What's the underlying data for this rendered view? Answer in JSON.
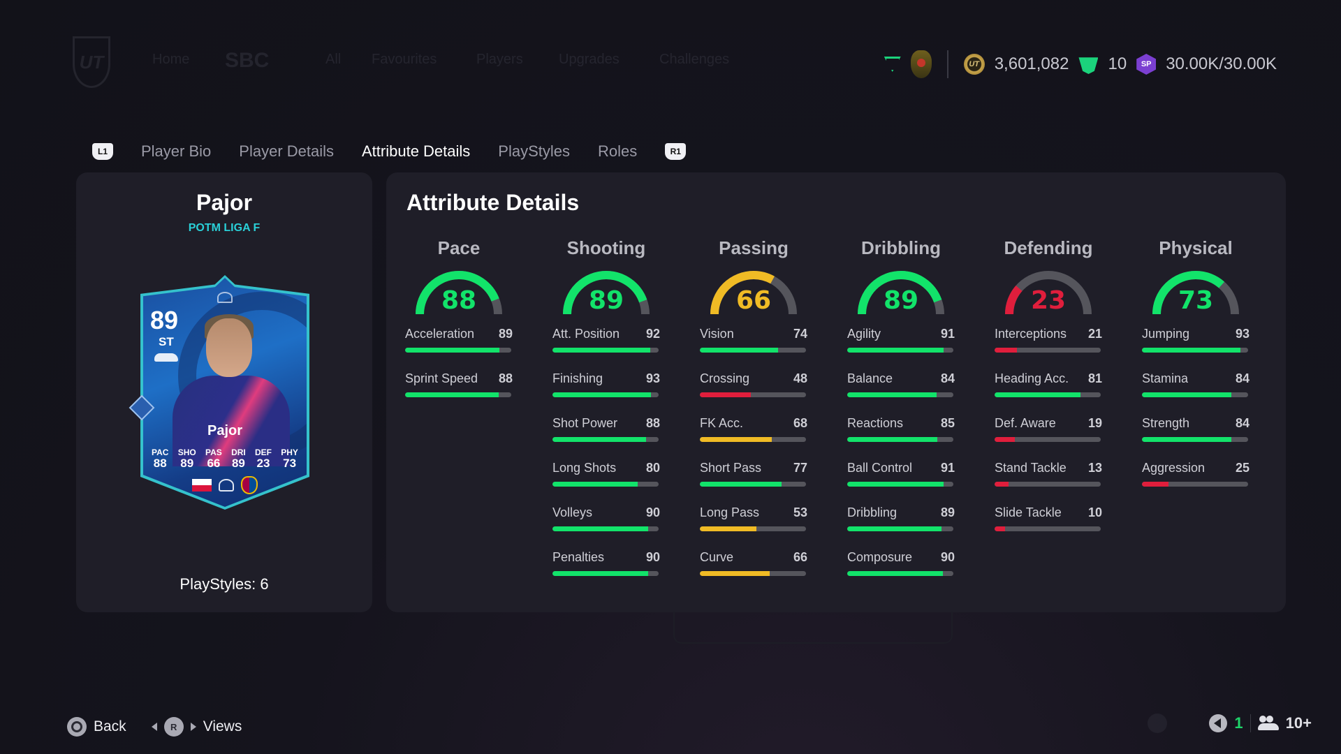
{
  "background_nav": {
    "logo": "UT",
    "items": [
      "Home",
      "SBC",
      "All",
      "Favourites",
      "Players",
      "Upgrades",
      "Challenges"
    ]
  },
  "topbar": {
    "division_icon": "division-rank-icon",
    "club_crest_icon": "club-crest-icon",
    "coins": "3,601,082",
    "fc_points": "10",
    "season_points": "30.00K/30.00K",
    "coin_glyph": "UT",
    "sp_glyph": "SP"
  },
  "tabs": {
    "left_bumper": "L1",
    "right_bumper": "R1",
    "items": [
      {
        "label": "Player Bio",
        "active": false
      },
      {
        "label": "Player Details",
        "active": false
      },
      {
        "label": "Attribute Details",
        "active": true
      },
      {
        "label": "PlayStyles",
        "active": false
      },
      {
        "label": "Roles",
        "active": false
      }
    ]
  },
  "player": {
    "name": "Pajor",
    "card_type": "POTM LIGA F",
    "playstyles_label": "PlayStyles: 6",
    "card": {
      "rating": "89",
      "position": "ST",
      "name": "Pajor",
      "stats": [
        {
          "key": "PAC",
          "value": "88"
        },
        {
          "key": "SHO",
          "value": "89"
        },
        {
          "key": "PAS",
          "value": "66"
        },
        {
          "key": "DRI",
          "value": "89"
        },
        {
          "key": "DEF",
          "value": "23"
        },
        {
          "key": "PHY",
          "value": "73"
        }
      ],
      "nation": "Poland",
      "league": "Liga F Moeve",
      "club": "FC Barcelona"
    }
  },
  "attributes": {
    "title": "Attribute Details",
    "colors": {
      "high": "#12e36a",
      "mid": "#f0bb25",
      "low": "#e01e3c",
      "track": "#55555c"
    },
    "categories": [
      {
        "name": "Pace",
        "value": 88,
        "items": [
          {
            "name": "Acceleration",
            "value": 89
          },
          {
            "name": "Sprint Speed",
            "value": 88
          }
        ]
      },
      {
        "name": "Shooting",
        "value": 89,
        "items": [
          {
            "name": "Att. Position",
            "value": 92
          },
          {
            "name": "Finishing",
            "value": 93
          },
          {
            "name": "Shot Power",
            "value": 88
          },
          {
            "name": "Long Shots",
            "value": 80
          },
          {
            "name": "Volleys",
            "value": 90
          },
          {
            "name": "Penalties",
            "value": 90
          }
        ]
      },
      {
        "name": "Passing",
        "value": 66,
        "items": [
          {
            "name": "Vision",
            "value": 74
          },
          {
            "name": "Crossing",
            "value": 48
          },
          {
            "name": "FK Acc.",
            "value": 68
          },
          {
            "name": "Short Pass",
            "value": 77
          },
          {
            "name": "Long Pass",
            "value": 53
          },
          {
            "name": "Curve",
            "value": 66
          }
        ]
      },
      {
        "name": "Dribbling",
        "value": 89,
        "items": [
          {
            "name": "Agility",
            "value": 91
          },
          {
            "name": "Balance",
            "value": 84
          },
          {
            "name": "Reactions",
            "value": 85
          },
          {
            "name": "Ball Control",
            "value": 91
          },
          {
            "name": "Dribbling",
            "value": 89
          },
          {
            "name": "Composure",
            "value": 90
          }
        ]
      },
      {
        "name": "Defending",
        "value": 23,
        "items": [
          {
            "name": "Interceptions",
            "value": 21
          },
          {
            "name": "Heading Acc.",
            "value": 81
          },
          {
            "name": "Def. Aware",
            "value": 19
          },
          {
            "name": "Stand Tackle",
            "value": 13
          },
          {
            "name": "Slide Tackle",
            "value": 10
          }
        ]
      },
      {
        "name": "Physical",
        "value": 73,
        "items": [
          {
            "name": "Jumping",
            "value": 93
          },
          {
            "name": "Stamina",
            "value": 84
          },
          {
            "name": "Strength",
            "value": 84
          },
          {
            "name": "Aggression",
            "value": 25
          }
        ]
      }
    ]
  },
  "footer": {
    "back_label": "Back",
    "views_label": "Views",
    "r_glyph": "R",
    "notification_count": "1",
    "friends_count": "10+"
  }
}
